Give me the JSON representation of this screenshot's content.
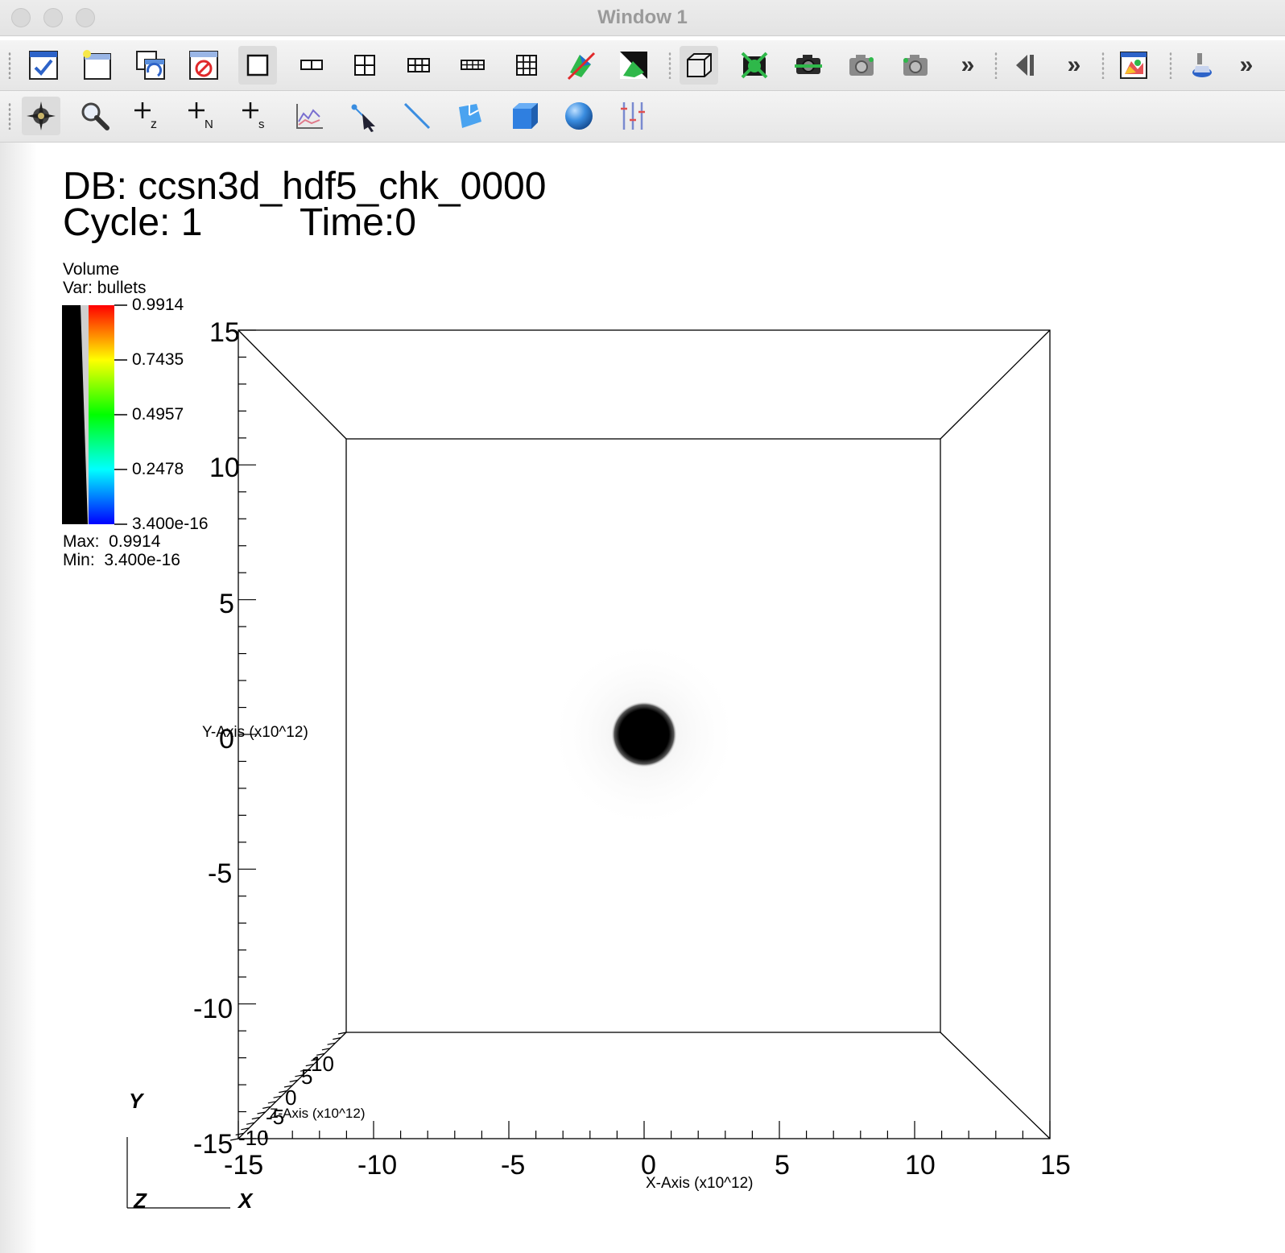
{
  "window": {
    "title": "Window 1"
  },
  "toolbar1": [
    {
      "name": "active-window-icon"
    },
    {
      "name": "new-window-icon"
    },
    {
      "name": "clone-window-icon"
    },
    {
      "name": "delete-window-icon"
    },
    {
      "name": "layout-1x1-icon"
    },
    {
      "name": "layout-1x2-icon"
    },
    {
      "name": "layout-2x2-icon"
    },
    {
      "name": "layout-2x3-icon"
    },
    {
      "name": "layout-2x4-icon"
    },
    {
      "name": "layout-3x3-icon"
    },
    {
      "name": "invert-background-icon"
    },
    {
      "name": "spin-mode-icon"
    },
    {
      "name": "perspective-icon"
    },
    {
      "name": "lock-view-icon"
    },
    {
      "name": "lock-time-icon"
    },
    {
      "name": "lock-tools-icon"
    },
    {
      "name": "camera-icon"
    },
    {
      "name": "animation-back-icon"
    },
    {
      "name": "save-window-icon"
    },
    {
      "name": "lighting-icon"
    }
  ],
  "toolbar2": [
    {
      "name": "navigate-mode-icon"
    },
    {
      "name": "zoom-mode-icon"
    },
    {
      "name": "zone-pick-icon"
    },
    {
      "name": "node-pick-icon"
    },
    {
      "name": "spreadsheet-pick-icon"
    },
    {
      "name": "curve-pick-icon"
    },
    {
      "name": "line-pick-icon"
    },
    {
      "name": "lineout-icon"
    },
    {
      "name": "plane-tool-icon"
    },
    {
      "name": "box-tool-icon"
    },
    {
      "name": "sphere-tool-icon"
    },
    {
      "name": "axis-restriction-icon"
    }
  ],
  "overflow": "»",
  "annotation": {
    "db": "DB: ccsn3d_hdf5_chk_0000",
    "cycle": "Cycle: 1",
    "time": "Time:0"
  },
  "legend": {
    "plot_type": "Volume",
    "var": "Var: bullets",
    "ticks": [
      "0.9914",
      "0.7435",
      "0.4957",
      "0.2478",
      "3.400e-16"
    ],
    "max": "Max:  0.9914",
    "min": "Min:  3.400e-16"
  },
  "axes": {
    "x_label": "X-Axis (x10^12)",
    "y_label": "Y-Axis (x10^12)",
    "z_label": "Z-Axis (x10^12)",
    "x_ticks": [
      "-15",
      "-10",
      "-5",
      "0",
      "5",
      "10",
      "15"
    ],
    "y_ticks": [
      "15",
      "10",
      "5",
      "0",
      "-5",
      "-10",
      "-15"
    ],
    "z_ticks": [
      "10",
      "5",
      "0",
      "-5",
      "-10"
    ]
  },
  "triad": {
    "x": "X",
    "y": "Y",
    "z": "Z"
  }
}
